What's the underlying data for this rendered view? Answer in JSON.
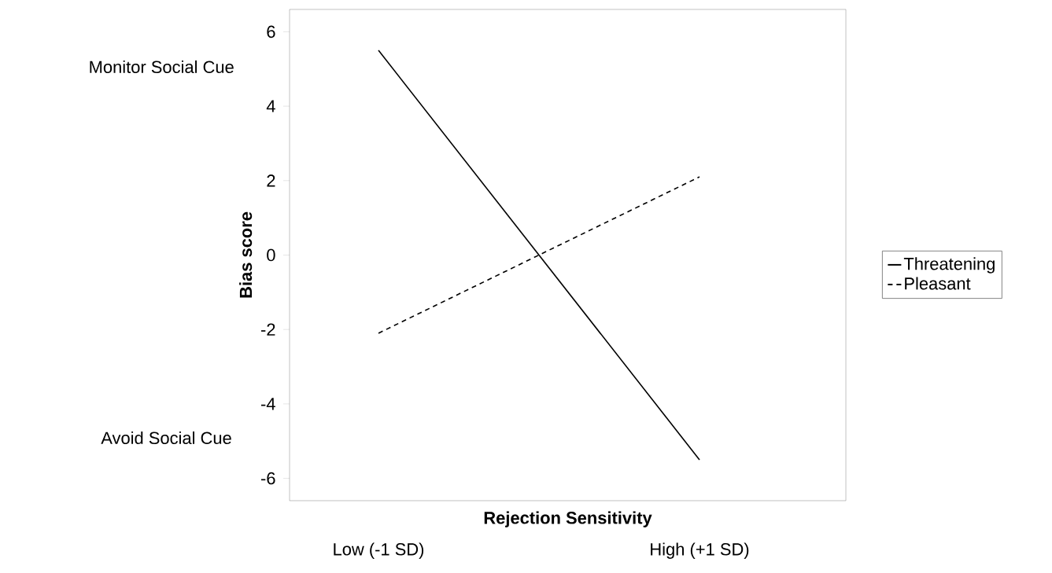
{
  "chart_data": {
    "type": "line",
    "xlabel": "Rejection Sensitivity",
    "ylabel": "Bias score",
    "categories": [
      "Low (-1 SD)",
      "High (+1 SD)"
    ],
    "series": [
      {
        "name": "Threatening",
        "color": "#000000",
        "line_style": "solid",
        "values": [
          5.5,
          -5.5
        ]
      },
      {
        "name": "Pleasant",
        "color": "#000000",
        "line_style": "dashed",
        "values": [
          -2.1,
          2.1
        ]
      }
    ],
    "ylim": [
      -6.6,
      6.6
    ],
    "yticks": [
      -6,
      -4,
      -2,
      0,
      2,
      4,
      6
    ],
    "legend": "right",
    "grid": false,
    "marker": "none",
    "annotations": [
      "Monitor Social Cue",
      "Avoid Social Cue"
    ]
  }
}
